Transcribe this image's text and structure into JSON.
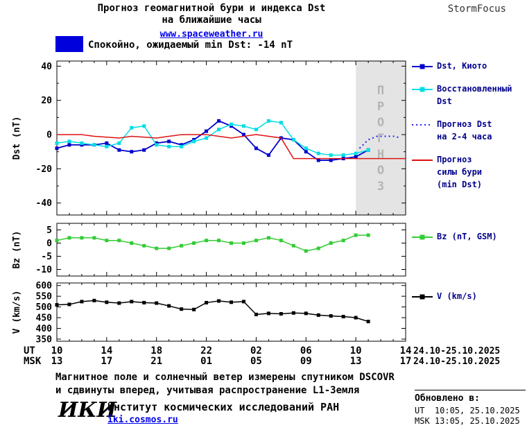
{
  "header": {
    "title_line1": "Прогноз геомагнитной бури и индекса Dst",
    "title_line2": "на ближайшие часы",
    "site_link": "www.spaceweather.ru",
    "brand": "StormFocus"
  },
  "status": {
    "text": "Спокойно, ожидаемый min Dst: -14 nT",
    "swatch_color": "#0000dd"
  },
  "xaxis": {
    "ut_label": "UT",
    "msk_label": "MSK",
    "ut_ticks": [
      "10",
      "14",
      "18",
      "22",
      "02",
      "06",
      "10",
      "14"
    ],
    "msk_ticks": [
      "13",
      "17",
      "21",
      "01",
      "05",
      "09",
      "13",
      "17"
    ],
    "ut_date": "24.10-25.10.2025",
    "msk_date": "24.10-25.10.2025"
  },
  "chart_data": [
    {
      "id": "dst",
      "type": "line",
      "ylabel": "Dst (nT)",
      "x_note": "hours since 10:00 UT 24.10.2025, ticks every 4 h",
      "xlim": [
        0,
        28
      ],
      "ylim": [
        -47,
        43
      ],
      "yticks": [
        40,
        20,
        0,
        -20,
        -40
      ],
      "yticks_minor": [
        30,
        10,
        -10,
        -30
      ],
      "forecast_region": [
        24,
        28
      ],
      "forecast_label": "ПРОГНОЗ",
      "grid": false,
      "legend_position": "right",
      "series": [
        {
          "name": "Dst, Киото",
          "legend_lines": [
            "Dst, Киото"
          ],
          "color": "#0000cc",
          "marker": "square",
          "width": 1.8,
          "x0": 0,
          "dx": 1,
          "y": [
            -8,
            -6,
            -6,
            -6,
            -5,
            -9,
            -10,
            -9,
            -5,
            -4,
            -6,
            -3,
            2,
            8,
            5,
            0,
            -8,
            -12,
            -2,
            -3,
            -10,
            -15,
            -15,
            -14,
            -13,
            -9
          ]
        },
        {
          "name": "Восстановленный Dst",
          "legend_lines": [
            "Восстановленный",
            "Dst"
          ],
          "color": "#00dde6",
          "marker": "square",
          "width": 1.5,
          "x0": 0,
          "dx": 1,
          "y": [
            -5,
            -4,
            -5,
            -6,
            -7,
            -5,
            4,
            5,
            -6,
            -7,
            -7,
            -4,
            -2,
            3,
            6,
            5,
            3,
            8,
            7,
            -3,
            -8,
            -11,
            -12,
            -12,
            -11,
            -9
          ]
        },
        {
          "name": "Прогноз Dst на 2-4 часа",
          "legend_lines": [
            "Прогноз Dst",
            "на 2-4 часа"
          ],
          "color": "#2222ee",
          "marker": null,
          "dash": "2,4",
          "width": 2,
          "x": [
            24.3,
            25,
            25.7,
            26.4,
            27.1,
            27.6
          ],
          "y": [
            -8,
            -3,
            -1,
            -1,
            -1,
            -2
          ]
        },
        {
          "name": "Прогноз силы бури (min Dst)",
          "legend_lines": [
            "Прогноз",
            "силы бури",
            "(min Dst)"
          ],
          "color": "#dd1111",
          "marker": null,
          "width": 1.5,
          "x": [
            0,
            2,
            3,
            5,
            6,
            8,
            9,
            10,
            12,
            13,
            14,
            15,
            16,
            17,
            18,
            18.5,
            19,
            28
          ],
          "y": [
            0,
            0,
            -1,
            -2,
            -1,
            -2,
            -1,
            0,
            0,
            -1,
            -2,
            -1,
            0,
            -1,
            -2,
            -8,
            -14,
            -14
          ]
        }
      ]
    },
    {
      "id": "bz",
      "type": "line",
      "ylabel": "Bz (nT)",
      "xlim": [
        0,
        28
      ],
      "ylim": [
        -12.5,
        7.5
      ],
      "yticks": [
        5,
        0,
        -5,
        -10
      ],
      "yticks_minor": [],
      "grid": false,
      "legend_position": "right",
      "series": [
        {
          "name": "Bz (nT, GSM)",
          "legend_lines": [
            "Bz (nT, GSM)"
          ],
          "color": "#33cc33",
          "marker": "square",
          "width": 1.5,
          "x0": 0,
          "dx": 1,
          "y": [
            1,
            2,
            2,
            2,
            1,
            1,
            0,
            -1,
            -2,
            -2,
            -1,
            0,
            1,
            1,
            0,
            0,
            1,
            2,
            1,
            -1,
            -3,
            -2,
            0,
            1,
            3,
            3
          ]
        }
      ]
    },
    {
      "id": "v",
      "type": "line",
      "ylabel": "V (km/s)",
      "xlim": [
        0,
        28
      ],
      "ylim": [
        340,
        612
      ],
      "yticks": [
        600,
        550,
        500,
        450,
        400,
        350
      ],
      "yticks_minor": [],
      "grid": false,
      "legend_position": "right",
      "series": [
        {
          "name": "V (km/s)",
          "legend_lines": [
            "V (km/s)"
          ],
          "color": "#000000",
          "marker": "square",
          "width": 1.5,
          "x0": 0,
          "dx": 1,
          "y": [
            510,
            512,
            525,
            530,
            522,
            518,
            525,
            520,
            518,
            505,
            490,
            488,
            520,
            528,
            522,
            525,
            465,
            470,
            468,
            472,
            470,
            462,
            458,
            455,
            450,
            432
          ]
        }
      ]
    }
  ],
  "footer": {
    "note_line1": "Магнитное поле и солнечный ветер измерены спутником DSCOVR",
    "note_line2": "и сдвинуты вперед, учитывая распространение L1-Земля",
    "logo": "ИКИ",
    "institute": "Институт космических исследований РАН",
    "site": "iki.cosmos.ru",
    "updated_label": "Обновлено в:",
    "updated_ut": "UT  10:05, 25.10.2025",
    "updated_msk": "MSK 13:05, 25.10.2025"
  }
}
